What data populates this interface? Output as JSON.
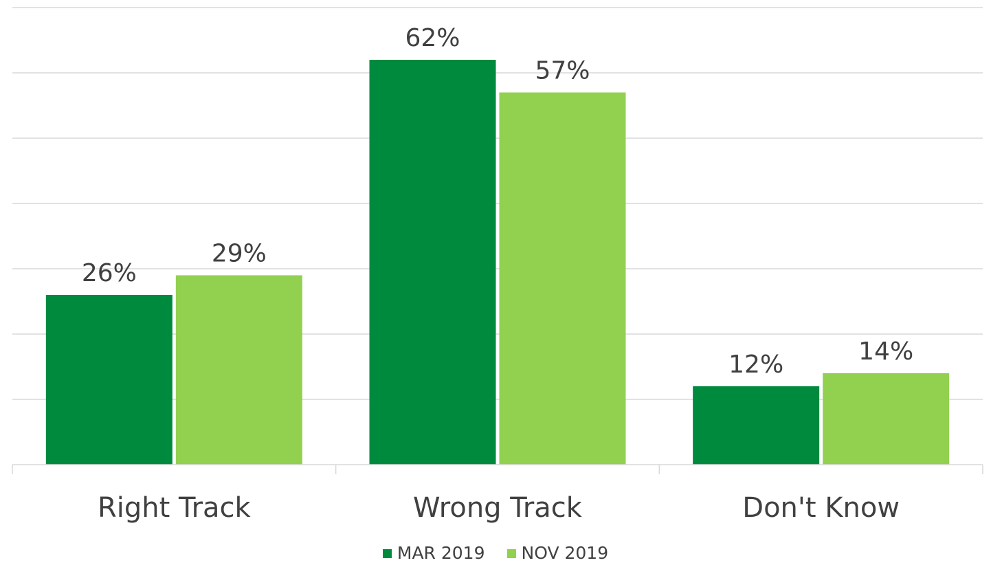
{
  "colors": {
    "series_0": "#008a3e",
    "series_1": "#92d050"
  },
  "chart_data": {
    "type": "bar",
    "categories": [
      "Right Track",
      "Wrong Track",
      "Don't Know"
    ],
    "series": [
      {
        "name": "MAR 2019",
        "values": [
          26,
          62,
          12
        ],
        "labels": [
          "26%",
          "62%",
          "12%"
        ]
      },
      {
        "name": "NOV 2019",
        "values": [
          29,
          57,
          14
        ],
        "labels": [
          "29%",
          "57%",
          "14%"
        ]
      }
    ],
    "ylim": [
      0,
      70
    ],
    "grid": true,
    "legend": "bottom"
  }
}
